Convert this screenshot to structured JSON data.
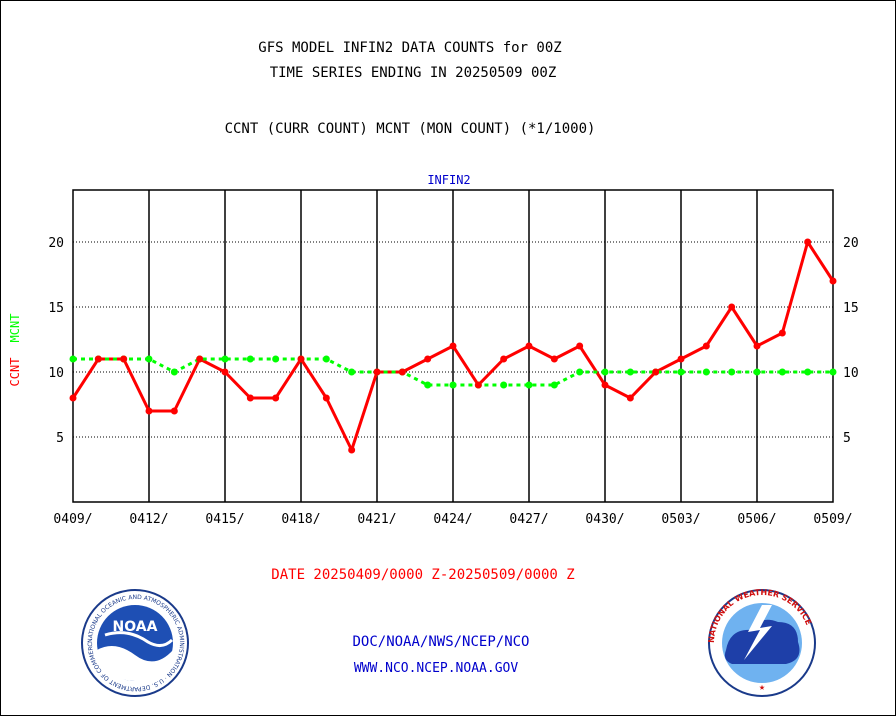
{
  "header": {
    "title_line1": "GFS MODEL INFIN2 DATA COUNTS for 00Z",
    "title_line2": "TIME SERIES ENDING IN 20250509 00Z",
    "subtitle": "CCNT (CURR COUNT) MCNT (MON COUNT) (*1/1000)"
  },
  "footer": {
    "date_range": "DATE 20250409/0000 Z-20250509/0000 Z",
    "org_line": "DOC/NOAA/NWS/NCEP/NCO",
    "url_line": "WWW.NCO.NCEP.NOAA.GOV",
    "noaa_logo_text": "NOAA",
    "noaa_ring_text": "NATIONAL OCEANIC AND ATMOSPHERIC ADMINISTRATION · U.S. DEPARTMENT OF COMMERCE",
    "nws_ring_text": "NATIONAL WEATHER SERVICE"
  },
  "colors": {
    "ccnt": "#ff0000",
    "mcnt": "#00ff00",
    "panel_label": "#0000cc",
    "footer_blue": "#0000cc",
    "date_red": "#ff0000"
  },
  "chart_data": {
    "type": "line",
    "panel_label": "INFIN2",
    "ylabel_ccnt": "CCNT",
    "ylabel_mcnt": "MCNT",
    "ylim": [
      0,
      24
    ],
    "yticks": [
      5,
      10,
      15,
      20
    ],
    "ytick_labels": [
      "5",
      "10",
      "15",
      "20"
    ],
    "xtick_labels": [
      "0409/",
      "0412/",
      "0415/",
      "0418/",
      "0421/",
      "0424/",
      "0427/",
      "0430/",
      "0503/",
      "0506/",
      "0509/"
    ],
    "x": [
      "0409",
      "0410",
      "0411",
      "0412",
      "0413",
      "0414",
      "0415",
      "0416",
      "0417",
      "0418",
      "0419",
      "0420",
      "0421",
      "0422",
      "0423",
      "0424",
      "0425",
      "0426",
      "0427",
      "0428",
      "0429",
      "0430",
      "0501",
      "0502",
      "0503",
      "0504",
      "0505",
      "0506",
      "0507",
      "0508",
      "0509"
    ],
    "series": [
      {
        "name": "CCNT",
        "color": "#ff0000",
        "style": "solid",
        "values": [
          8,
          11,
          11,
          7,
          7,
          11,
          10,
          8,
          8,
          11,
          8,
          4,
          10,
          10,
          11,
          12,
          9,
          11,
          12,
          11,
          12,
          9,
          8,
          10,
          11,
          12,
          15,
          12,
          13,
          20,
          17
        ]
      },
      {
        "name": "MCNT",
        "color": "#00ff00",
        "style": "dotted",
        "values": [
          11,
          11,
          11,
          11,
          10,
          11,
          11,
          11,
          11,
          11,
          11,
          10,
          10,
          10,
          9,
          9,
          9,
          9,
          9,
          9,
          10,
          10,
          10,
          10,
          10,
          10,
          10,
          10,
          10,
          10,
          10
        ]
      }
    ],
    "grid": true
  }
}
